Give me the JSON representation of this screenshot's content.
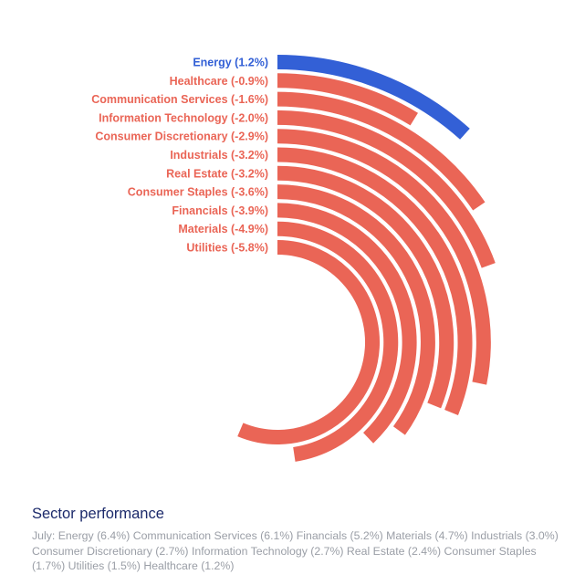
{
  "chart_data": {
    "type": "radial-bar",
    "title": "",
    "unit": "%",
    "colors": {
      "positive": "#3360d6",
      "negative": "#ea6556"
    },
    "categories": [
      "Energy",
      "Healthcare",
      "Communication Services",
      "Information Technology",
      "Consumer Discretionary",
      "Industrials",
      "Real Estate",
      "Consumer Staples",
      "Financials",
      "Materials",
      "Utilities"
    ],
    "values": [
      1.2,
      -0.9,
      -1.6,
      -2.0,
      -2.9,
      -3.2,
      -3.2,
      -3.6,
      -3.9,
      -4.9,
      -5.8
    ],
    "labels": [
      "Energy (1.2%)",
      "Healthcare (-0.9%)",
      "Communication Services (-1.6%)",
      "Information Technology (-2.0%)",
      "Consumer Discretionary (-2.9%)",
      "Industrials (-3.2%)",
      "Real Estate (-3.2%)",
      "Consumer Staples (-3.6%)",
      "Financials (-3.9%)",
      "Materials (-4.9%)",
      "Utilities (-5.8%)"
    ]
  },
  "footer": {
    "title": "Sector performance",
    "subtitle": "July: Energy (6.4%) Communication Services (6.1%) Financials (5.2%) Materials (4.7%) Industrials (3.0%) Consumer Discretionary (2.7%) Information Technology (2.7%) Real Estate (2.4%) Consumer Staples (1.7%) Utilities (1.5%) Healthcare (1.2%)"
  }
}
